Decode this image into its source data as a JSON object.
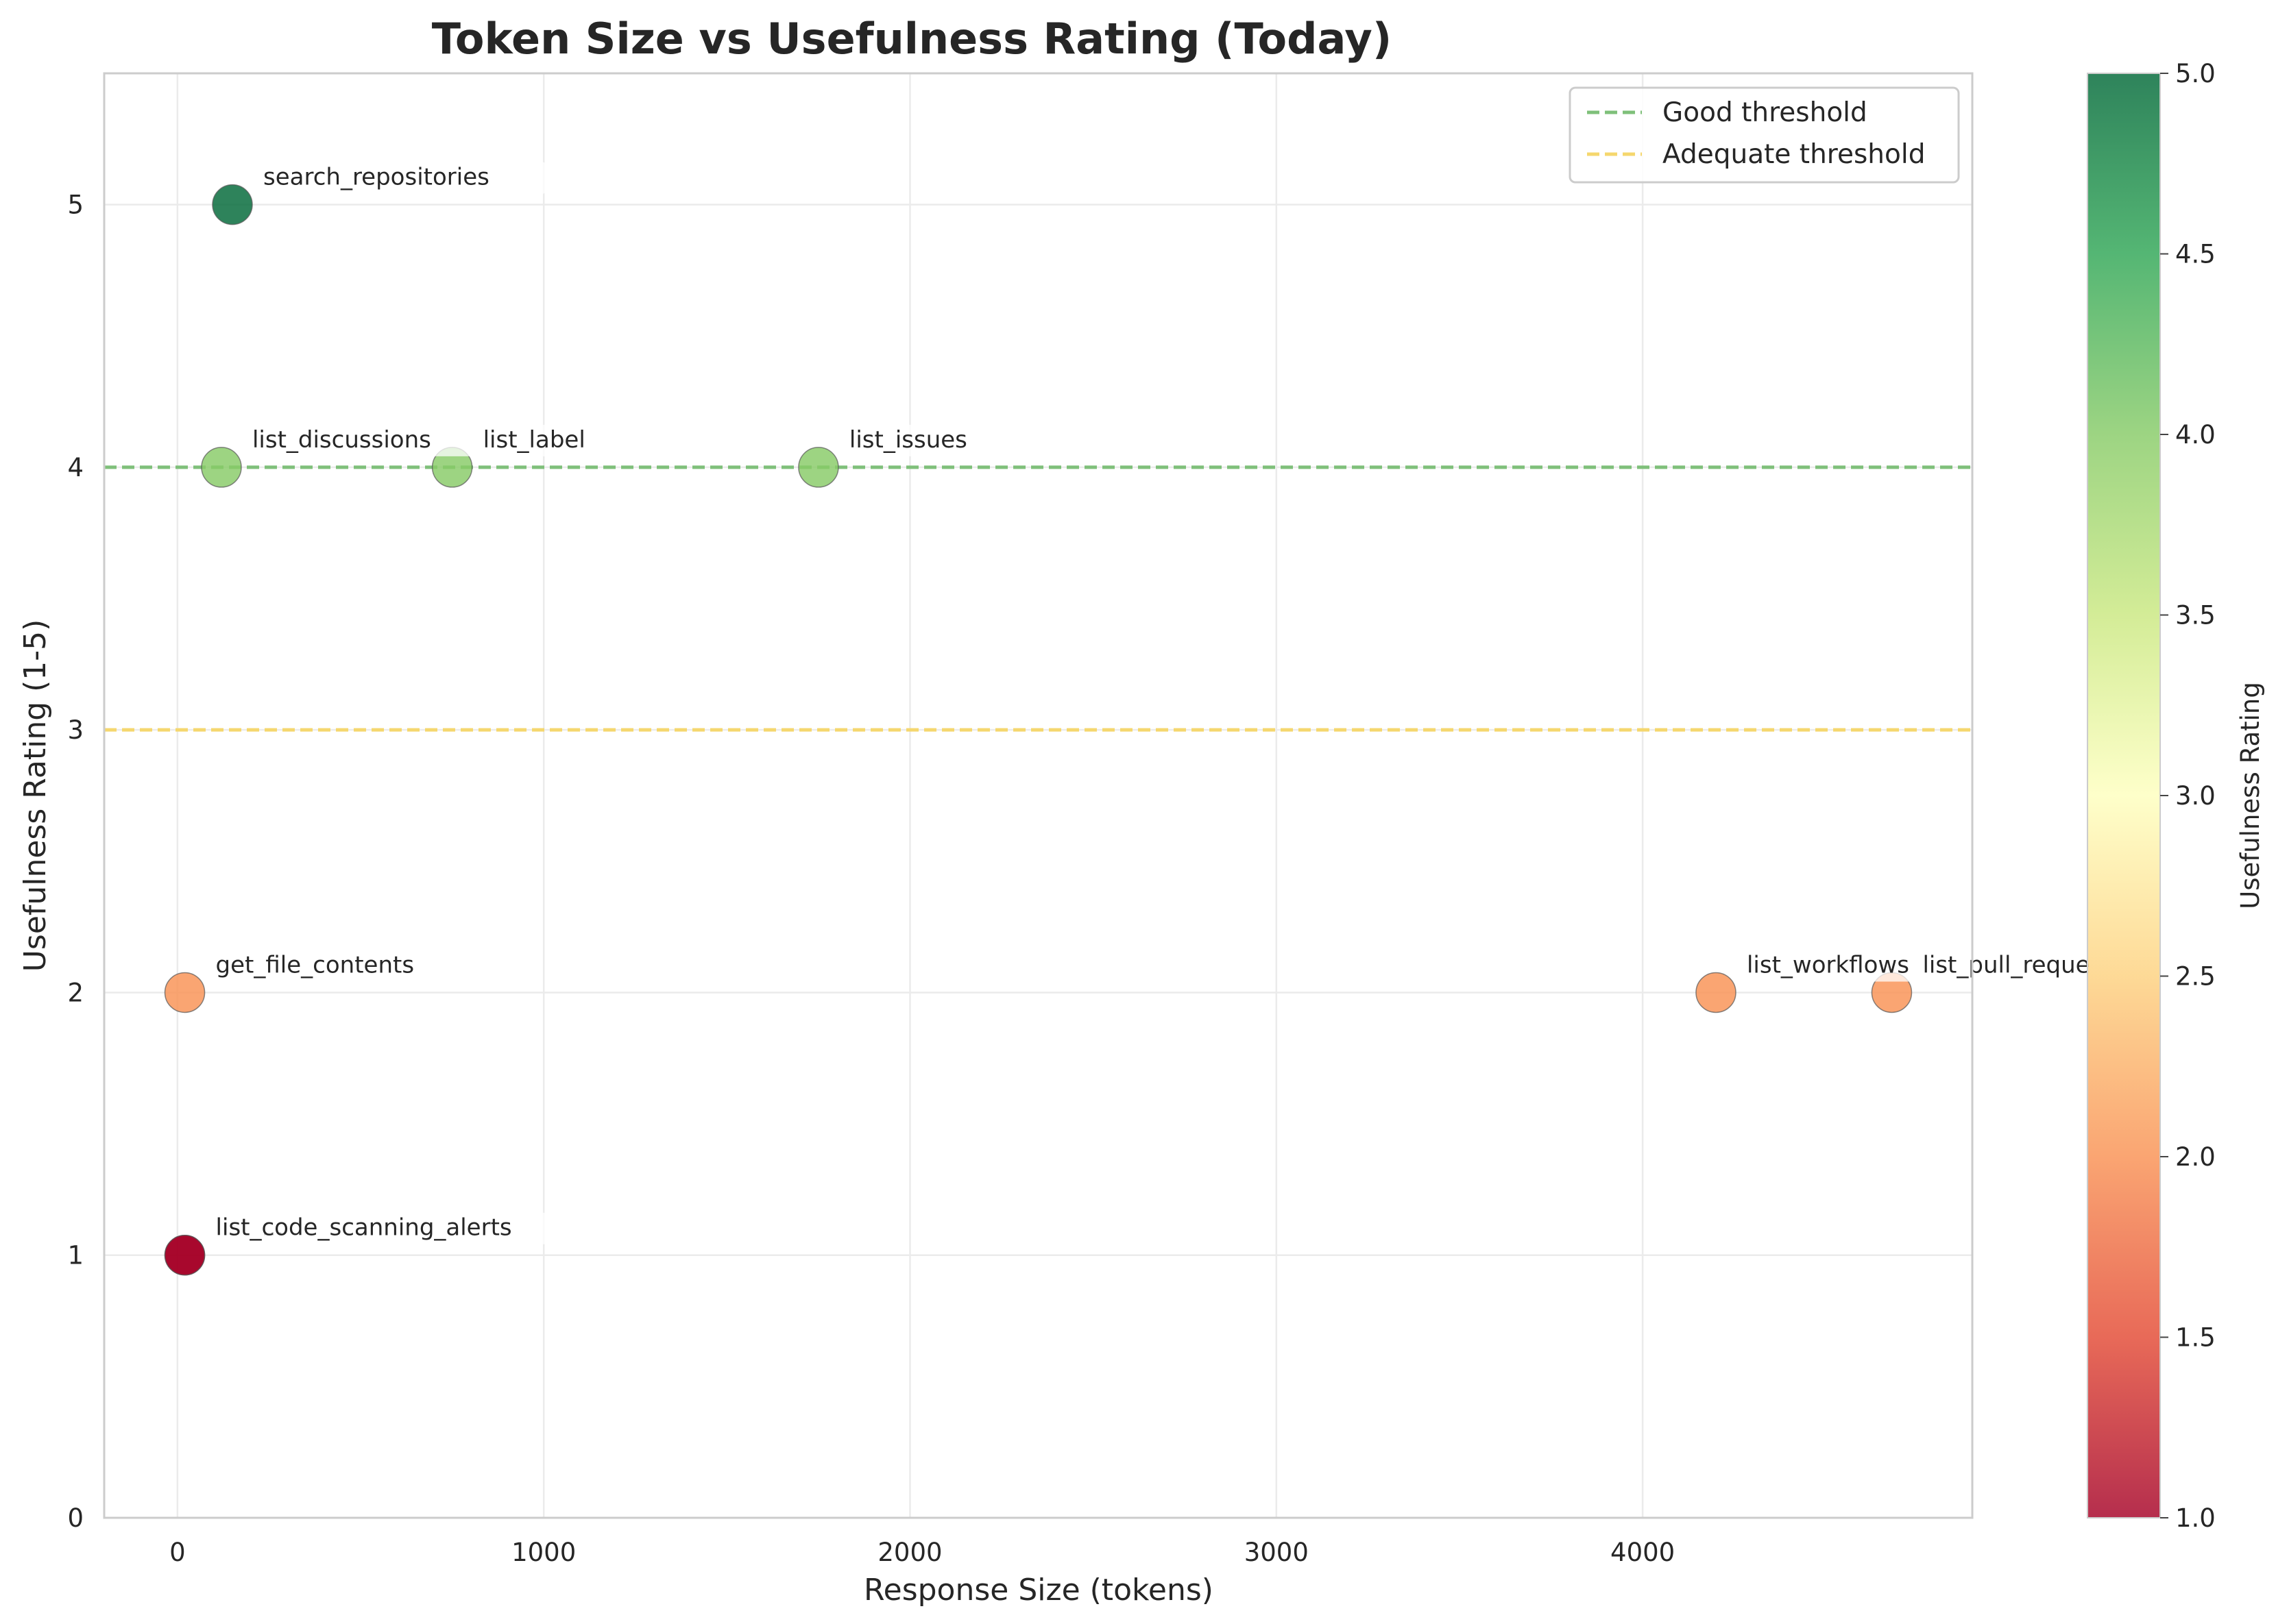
{
  "chart_data": {
    "type": "scatter",
    "title": "Token Size vs Usefulness Rating (Today)",
    "xlabel": "Response Size (tokens)",
    "ylabel": "Usefulness Rating (1-5)",
    "xlim": [
      -200,
      4900
    ],
    "ylim": [
      0,
      5.5
    ],
    "x_ticks": [
      0,
      1000,
      2000,
      3000,
      4000
    ],
    "y_ticks": [
      0,
      1,
      2,
      3,
      4,
      5
    ],
    "grid": true,
    "legend_position": "top-right",
    "points": [
      {
        "label": "search_repositories",
        "x": 150,
        "y": 5
      },
      {
        "label": "list_discussions",
        "x": 120,
        "y": 4
      },
      {
        "label": "list_label",
        "x": 750,
        "y": 4
      },
      {
        "label": "list_issues",
        "x": 1750,
        "y": 4
      },
      {
        "label": "get_file_contents",
        "x": 20,
        "y": 2
      },
      {
        "label": "list_workflows",
        "x": 4200,
        "y": 2
      },
      {
        "label": "list_pull_reque",
        "x": 4680,
        "y": 2
      },
      {
        "label": "list_...",
        "x": 20,
        "y": 1
      },
      {
        "label": "list_code_scanning_alerts",
        "x": 20,
        "y": 1
      }
    ],
    "reference_lines": [
      {
        "name": "Good threshold",
        "y": 4,
        "color": "#7fc07a",
        "style": "dashed"
      },
      {
        "name": "Adequate threshold",
        "y": 3,
        "color": "#f5d76e",
        "style": "dashed"
      }
    ],
    "colorbar": {
      "label": "Usefulness Rating",
      "range": [
        1,
        5
      ],
      "ticks": [
        "1.0",
        "1.5",
        "2.0",
        "2.5",
        "3.0",
        "3.5",
        "4.0",
        "4.5",
        "5.0"
      ],
      "colormap": "RdYlGn"
    }
  }
}
